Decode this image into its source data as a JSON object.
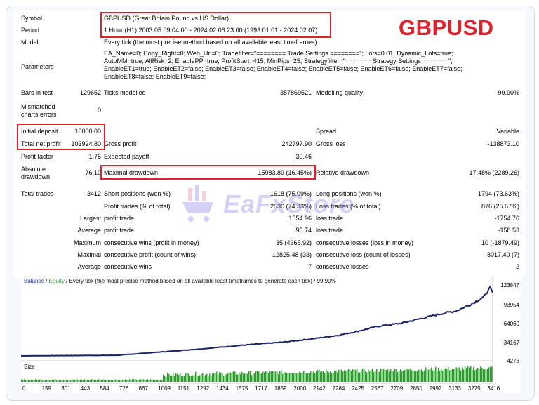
{
  "symbol_label": "GBPUSD",
  "rows": {
    "symbol": {
      "label": "Symbol",
      "value": "GBPUSD (Great Britain Pound vs US Dollar)"
    },
    "period": {
      "label": "Period",
      "value": "1 Hour (H1) 2003.05.09 04:00 - 2024.02.06 23:00 (1993.01.01 - 2024.02.07)"
    },
    "model": {
      "label": "Model",
      "value": "Every tick (the most precise method based on all available least timeframes)"
    },
    "parameters": {
      "label": "Parameters",
      "lines": [
        "EA_Name=0; Copy_Right=0; Web_Url=0; Tradefilter=\"======== Trade Settings ========\"; Lots=0.01; Dynamic_Lots=true;",
        "AutoMM=true; AllRisk=2; EnablePP=true; ProfitStart=415; MinPips=25; Strategyfilter=\"======= Strategy Settings =======\";",
        "EnableET1=true; EnableET2=false; EnableET3=false; EnableET4=false; EnableET5=false; EnableET6=false; EnableET7=false;",
        "EnableET8=false; EnableET9=false;"
      ]
    }
  },
  "stats": {
    "bars_label": "Bars in test",
    "bars": "129652",
    "ticks_label": "Ticks modelled",
    "ticks": "357869521",
    "quality_label": "Modelling quality",
    "quality": "99.90%",
    "mismatch_label1": "Mismatched",
    "mismatch_label2": "charts errors",
    "mismatch": "0",
    "deposit_label": "Initial deposit",
    "deposit": "10000.00",
    "spread_label": "Spread",
    "spread": "Variable",
    "net_label": "Total net profit",
    "net": "103924.80",
    "gross_profit_label": "Gross profit",
    "gross_profit": "242797.90",
    "gross_loss_label": "Gross loss",
    "gross_loss": "-138873.10",
    "pf_label": "Profit factor",
    "pf": "1.75",
    "ep_label": "Expected payoff",
    "ep": "30.46",
    "abs_dd_label1": "Absolute",
    "abs_dd_label2": "drawdown",
    "abs_dd": "76.10",
    "max_dd_label": "Maximal drawdown",
    "max_dd": "15983.89 (16.45%)",
    "rel_dd_label": "Relative drawdown",
    "rel_dd": "17.48% (2289.26)",
    "trades_label": "Total trades",
    "trades": "3412",
    "short_label": "Short positions (won %)",
    "short": "1618 (75.09%)",
    "long_label": "Long positions (won %)",
    "long": "1794 (73.63%)",
    "pt_label": "Profit trades (% of total)",
    "pt": "2536 (74.33%)",
    "lt_label": "Loss trades (% of total)",
    "lt": "876 (25.67%)",
    "largest": "Largest",
    "average": "Average",
    "maximum": "Maximum",
    "maximal": "Maximal",
    "profit_trade": "profit trade",
    "loss_trade": "loss trade",
    "largest_pt": "1554.96",
    "largest_lt": "-1754.76",
    "avg_pt": "95.74",
    "avg_lt": "-158.53",
    "cw_money_label": "consecutive wins (profit in money)",
    "cw_money": "35 (4365.92)",
    "cl_money_label": "consecutive losses (loss in money)",
    "cl_money": "10 (-1879.49)",
    "cp_count_label": "consecutive profit (count of wins)",
    "cp_count": "12825.48 (33)",
    "cl_count_label": "consecutive loss (count of losses)",
    "cl_count": "-8017.40 (7)",
    "cw_avg_label": "consecutive wins",
    "cw_avg": "7",
    "cl_avg_label": "consecutive losses",
    "cl_avg": "2"
  },
  "watermark": "EaFxStore",
  "chart": {
    "caption_balance": "Balance",
    "caption_sep": " / ",
    "caption_equity": "Equity",
    "caption_rest": " / Every tick (the most precise method based on all available least timeframes to generate each tick) / 99.90%",
    "size_label": "Size",
    "y_ticks": [
      "123847",
      "93954",
      "64060",
      "34167",
      "4273"
    ],
    "x_ticks": [
      "0",
      "159",
      "301",
      "443",
      "584",
      "726",
      "867",
      "1009",
      "1151",
      "1292",
      "1434",
      "1575",
      "1717",
      "1859",
      "2000",
      "2142",
      "2284",
      "2425",
      "2567",
      "2709",
      "2850",
      "2992",
      "3133",
      "3275",
      "3416"
    ],
    "balance_color": "#1a2366",
    "equity_color": "#2e9a2e",
    "size_color": "#2ca02c"
  }
}
